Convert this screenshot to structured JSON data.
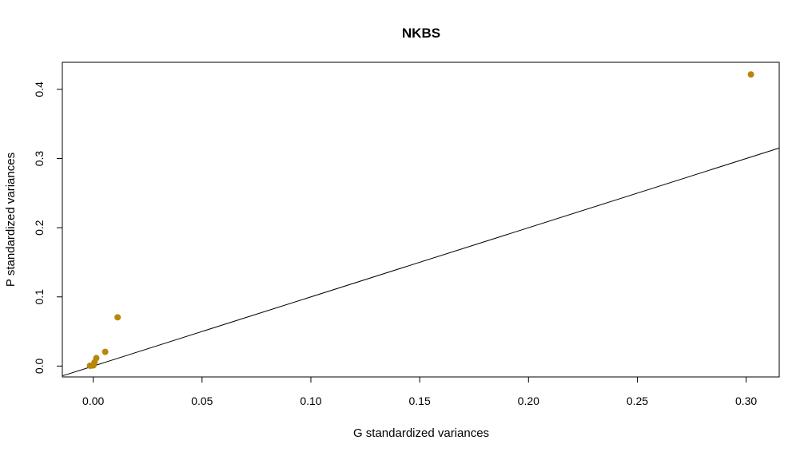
{
  "chart_data": {
    "type": "scatter",
    "title": "NKBS",
    "xlabel": "G standardized variances",
    "ylabel": "P standardized variances",
    "xlim": [
      -0.0142,
      0.3152
    ],
    "ylim": [
      -0.0157,
      0.4391
    ],
    "x_ticks": [
      0.0,
      0.05,
      0.1,
      0.15,
      0.2,
      0.25,
      0.3
    ],
    "x_tick_labels": [
      "0.00",
      "0.05",
      "0.10",
      "0.15",
      "0.20",
      "0.25",
      "0.30"
    ],
    "y_ticks": [
      0.0,
      0.1,
      0.2,
      0.3,
      0.4
    ],
    "y_tick_labels": [
      "0.0",
      "0.1",
      "0.2",
      "0.3",
      "0.4"
    ],
    "grid": false,
    "point_color": "#B8860B",
    "line_color": "#000000",
    "reference_line": {
      "intercept": 0,
      "slope": 1
    },
    "points": [
      {
        "x": -0.0015,
        "y": 0.0005
      },
      {
        "x": -0.0005,
        "y": 0.0008
      },
      {
        "x": 0.0001,
        "y": 0.0012
      },
      {
        "x": 0.0006,
        "y": 0.0055
      },
      {
        "x": 0.0014,
        "y": 0.0115
      },
      {
        "x": 0.0055,
        "y": 0.0205
      },
      {
        "x": 0.0112,
        "y": 0.0705
      },
      {
        "x": 0.3022,
        "y": 0.4215
      }
    ]
  }
}
